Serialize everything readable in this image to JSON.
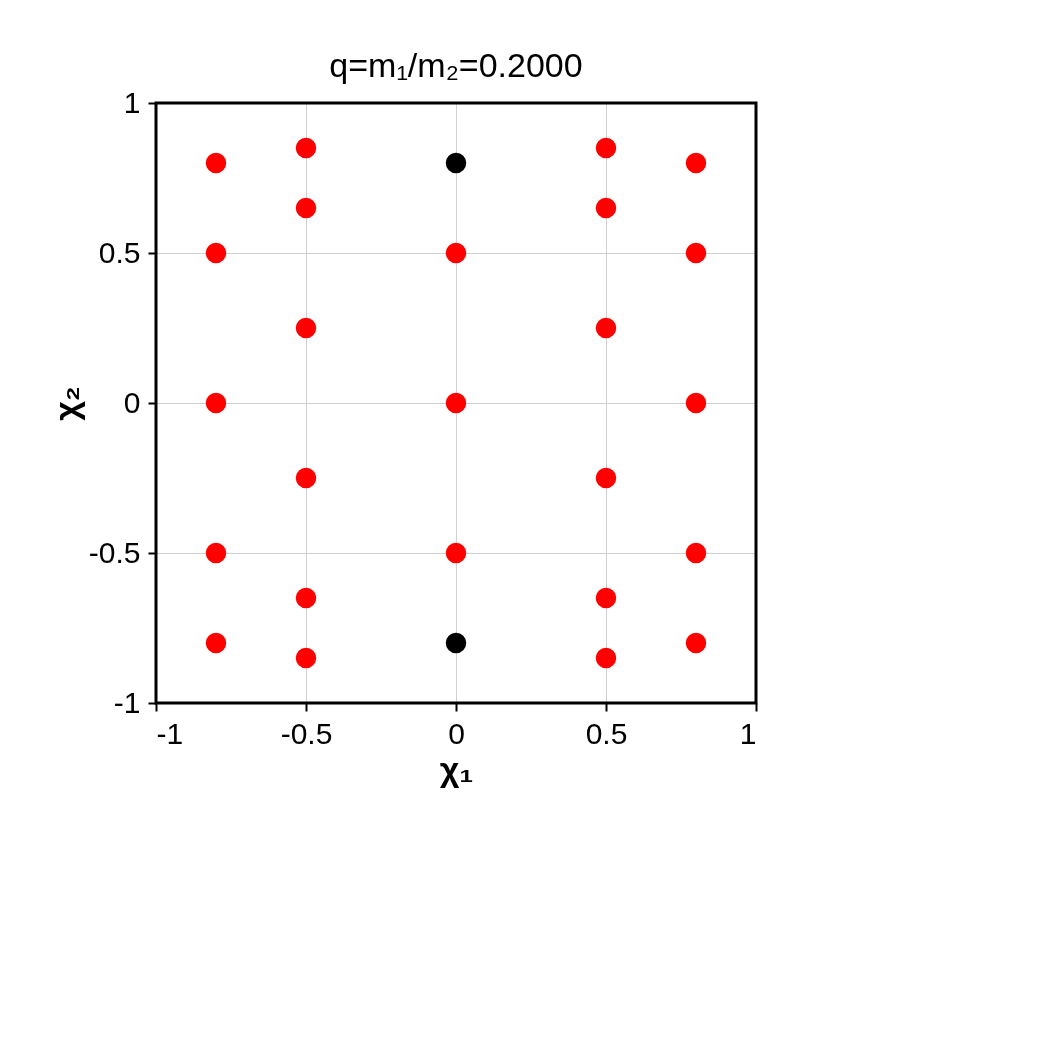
{
  "chart_data": {
    "type": "scatter",
    "title": "q=m₁/m₂=0.2000",
    "xlabel": "χ₁",
    "ylabel": "χ₂",
    "series": [
      {
        "color": "#ff0000",
        "x": [
          0.8,
          0.8,
          0.8,
          0.8,
          0.8,
          0.5,
          0.5,
          0.5,
          0.5,
          0.5,
          0.5,
          0,
          0,
          0,
          -0.5,
          -0.5,
          -0.5,
          -0.5,
          -0.5,
          -0.5,
          -0.8,
          -0.8,
          -0.8,
          -0.8,
          -0.8
        ],
        "values": [
          0.8,
          0.5,
          0,
          -0.5,
          -0.8,
          0.85,
          0.65,
          0.25,
          -0.25,
          -0.65,
          -0.85,
          0.5,
          0,
          -0.5,
          0.85,
          0.65,
          0.25,
          -0.25,
          -0.65,
          -0.85,
          0.8,
          0.5,
          0,
          -0.5,
          -0.8
        ]
      },
      {
        "color": "#000000",
        "x": [
          0,
          0
        ],
        "values": [
          0.8,
          -0.8
        ]
      }
    ],
    "xlim": [
      -1,
      1
    ],
    "ylim": [
      -1,
      1
    ],
    "xticks": [
      -1,
      -0.5,
      0,
      0.5,
      1
    ],
    "yticks": [
      -1,
      -0.5,
      0,
      0.5,
      1
    ],
    "grid": true,
    "marker": "circle",
    "legend": false
  }
}
